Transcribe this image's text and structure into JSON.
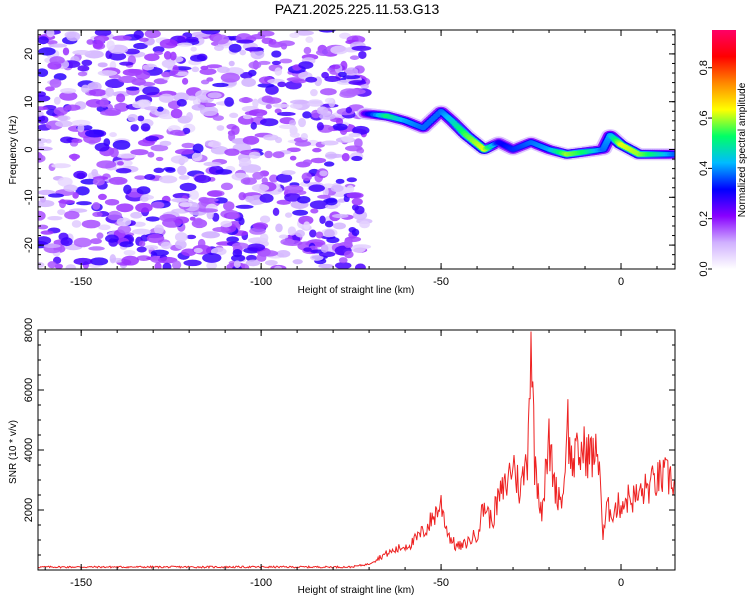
{
  "title": "PAZ1.2025.225.11.53.G13",
  "chart_data": [
    {
      "type": "heatmap",
      "xlabel": "Height of straight line (km)",
      "ylabel": "Frequency (Hz)",
      "xlim": [
        -162,
        15
      ],
      "ylim": [
        -25,
        25
      ],
      "xticks": [
        -150,
        -100,
        -50,
        0
      ],
      "yticks": [
        -20,
        -10,
        0,
        10,
        20
      ],
      "colorbar": {
        "label": "Normalized spectral amplitude",
        "range": [
          0,
          0.95
        ],
        "ticks": [
          "0.0",
          "0.2",
          "0.4",
          "0.6",
          "0.8"
        ],
        "tick_values": [
          0,
          0.2,
          0.4,
          0.6,
          0.8
        ],
        "colormap": [
          "#ffffff",
          "#d0b0ff",
          "#8800ff",
          "#0000ff",
          "#00bbff",
          "#00ff66",
          "#ffff00",
          "#ff8800",
          "#ff0000",
          "#ff0066"
        ]
      },
      "noise_region_x": [
        -162,
        -71
      ],
      "ridge": {
        "x": [
          -71,
          -65,
          -60,
          -55,
          -50,
          -47,
          -43,
          -38,
          -34,
          -30,
          -25,
          -20,
          -15,
          -10,
          -5,
          -3,
          0,
          5,
          10,
          15
        ],
        "y": [
          7.5,
          7.0,
          6.0,
          4.5,
          8.0,
          6.0,
          3.0,
          0.0,
          1.5,
          0.0,
          1.5,
          0.0,
          -1.0,
          -0.5,
          0.0,
          3.0,
          1.0,
          -1.0,
          -1.0,
          -1.0
        ],
        "amplitude": [
          0.35,
          0.7,
          0.55,
          0.5,
          0.5,
          0.6,
          0.75,
          0.85,
          0.4,
          0.45,
          0.5,
          0.55,
          0.8,
          0.7,
          0.5,
          0.55,
          0.85,
          0.8,
          0.65,
          0.5
        ]
      }
    },
    {
      "type": "line",
      "xlabel": "Height of straight line (km)",
      "ylabel": "SNR (10 * v/v)",
      "xlim": [
        -162,
        15
      ],
      "ylim": [
        0,
        8000
      ],
      "xticks": [
        -150,
        -100,
        -50,
        0
      ],
      "yticks": [
        2000,
        4000,
        6000,
        8000
      ],
      "series": [
        {
          "color": "#ee2222",
          "x": [
            -162,
            -150,
            -140,
            -130,
            -120,
            -110,
            -100,
            -90,
            -80,
            -75,
            -70,
            -66,
            -62,
            -58,
            -54,
            -50,
            -48,
            -46,
            -44,
            -42,
            -40,
            -38,
            -36,
            -34,
            -32,
            -30,
            -28,
            -26,
            -25,
            -24,
            -22,
            -20,
            -18,
            -16,
            -15,
            -14,
            -12,
            -10,
            -8,
            -6,
            -5,
            -4,
            -2,
            0,
            2,
            4,
            6,
            8,
            10,
            12,
            15
          ],
          "y": [
            100,
            100,
            100,
            100,
            100,
            100,
            100,
            100,
            100,
            100,
            200,
            500,
            700,
            900,
            1400,
            2200,
            1200,
            800,
            800,
            1000,
            1200,
            2200,
            1600,
            2400,
            2800,
            3600,
            2600,
            3800,
            8000,
            3600,
            2000,
            4200,
            2600,
            2400,
            5300,
            3600,
            3800,
            4000,
            3800,
            3800,
            1000,
            2000,
            2000,
            2200,
            2400,
            2400,
            2600,
            2800,
            3000,
            3100,
            3000
          ]
        }
      ]
    }
  ]
}
